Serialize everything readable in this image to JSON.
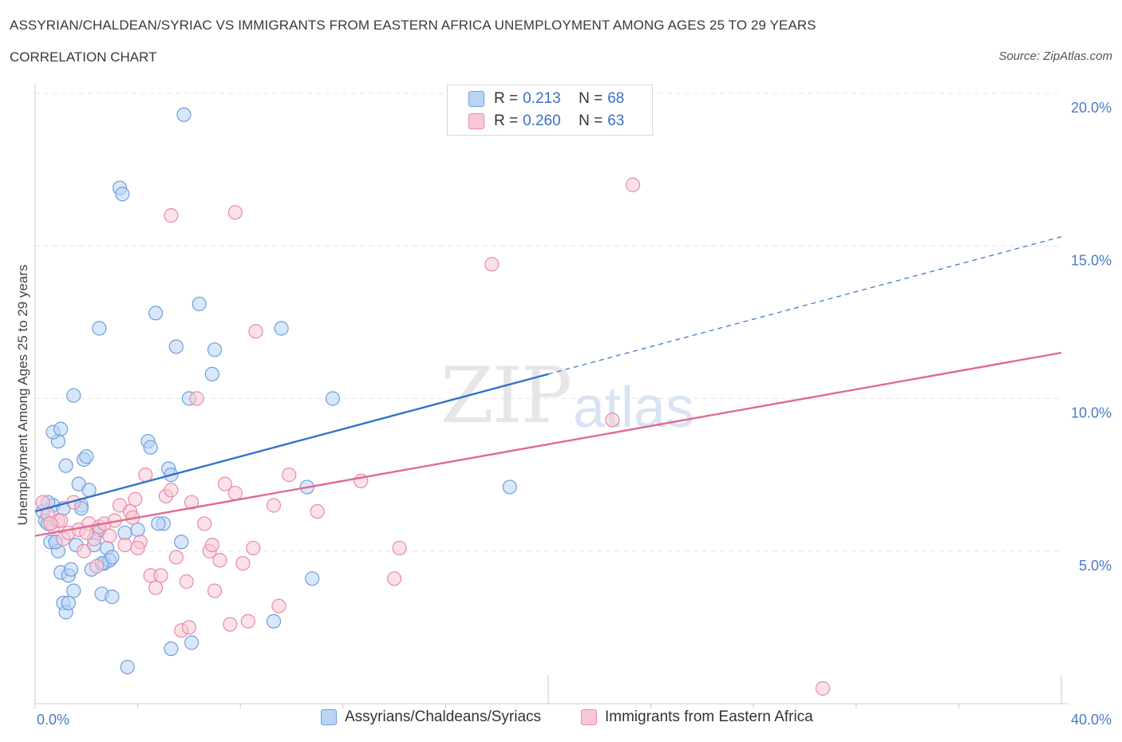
{
  "header": {
    "title": "ASSYRIAN/CHALDEAN/SYRIAC VS IMMIGRANTS FROM EASTERN AFRICA UNEMPLOYMENT AMONG AGES 25 TO 29 YEARS",
    "subtitle": "CORRELATION CHART",
    "source": "Source: ZipAtlas.com"
  },
  "watermark": {
    "zip": "ZIP",
    "atlas": "atlas"
  },
  "stats": {
    "r_label": "R =",
    "n_label": "N =",
    "rows": [
      {
        "r": "0.213",
        "n": "68"
      },
      {
        "r": "0.260",
        "n": "63"
      }
    ]
  },
  "colors": {
    "blue_fill": "#b9d4f5",
    "blue_stroke": "#6e9fdc",
    "blue_line": "#2f72cc",
    "pink_fill": "#f8c8d6",
    "pink_stroke": "#e98aa8",
    "pink_line": "#e06a95",
    "tick": "#4a7cc7",
    "grid": "#e3e3e3"
  },
  "chart_data": {
    "type": "scatter",
    "title": "ASSYRIAN/CHALDEAN/SYRIAC VS IMMIGRANTS FROM EASTERN AFRICA UNEMPLOYMENT AMONG AGES 25 TO 29 YEARS",
    "subtitle": "CORRELATION CHART",
    "xlabel": "",
    "ylabel": "Unemployment Among Ages 25 to 29 years",
    "xlim": [
      0,
      40
    ],
    "ylim": [
      0,
      20
    ],
    "x_tick_labels": [
      "0.0%",
      "40.0%"
    ],
    "y_ticks": [
      5,
      10,
      15,
      20
    ],
    "y_tick_labels": [
      "5.0%",
      "10.0%",
      "15.0%",
      "20.0%"
    ],
    "grid": true,
    "legend_position": "bottom",
    "series": [
      {
        "name": "Assyrians/Chaldeans/Syriacs",
        "color": "#6e9fdc",
        "r": 0.213,
        "n": 68,
        "trend": {
          "x0": 0,
          "y0": 6.3,
          "x1": 20,
          "y1": 10.8,
          "dashed_to_x": 40,
          "dashed_to_y": 15.3
        },
        "points": [
          [
            0.3,
            6.3
          ],
          [
            0.4,
            6.0
          ],
          [
            0.5,
            5.9
          ],
          [
            0.6,
            5.3
          ],
          [
            0.7,
            6.5
          ],
          [
            0.8,
            5.3
          ],
          [
            0.9,
            5.0
          ],
          [
            1.0,
            4.3
          ],
          [
            1.1,
            3.3
          ],
          [
            1.2,
            3.0
          ],
          [
            1.3,
            4.2
          ],
          [
            1.4,
            4.4
          ],
          [
            1.5,
            3.7
          ],
          [
            1.6,
            5.2
          ],
          [
            1.7,
            7.2
          ],
          [
            1.8,
            6.5
          ],
          [
            1.9,
            8.0
          ],
          [
            2.0,
            8.1
          ],
          [
            2.1,
            7.0
          ],
          [
            2.2,
            4.4
          ],
          [
            2.3,
            5.2
          ],
          [
            2.4,
            5.6
          ],
          [
            2.5,
            5.7
          ],
          [
            2.6,
            3.6
          ],
          [
            2.7,
            4.6
          ],
          [
            2.8,
            5.1
          ],
          [
            2.9,
            4.7
          ],
          [
            3.0,
            3.5
          ],
          [
            3.3,
            16.9
          ],
          [
            3.4,
            16.7
          ],
          [
            3.5,
            5.6
          ],
          [
            3.6,
            1.2
          ],
          [
            4.0,
            5.7
          ],
          [
            4.4,
            8.6
          ],
          [
            4.5,
            8.4
          ],
          [
            4.7,
            12.8
          ],
          [
            5.0,
            5.9
          ],
          [
            5.2,
            7.7
          ],
          [
            5.3,
            7.5
          ],
          [
            5.5,
            11.7
          ],
          [
            5.7,
            5.3
          ],
          [
            5.8,
            19.3
          ],
          [
            6.0,
            10.0
          ],
          [
            6.1,
            2.0
          ],
          [
            6.4,
            13.1
          ],
          [
            6.9,
            10.8
          ],
          [
            7.0,
            11.6
          ],
          [
            9.3,
            2.7
          ],
          [
            9.6,
            12.3
          ],
          [
            10.6,
            7.1
          ],
          [
            10.8,
            4.1
          ],
          [
            11.6,
            10.0
          ],
          [
            18.5,
            7.1
          ],
          [
            1.2,
            7.8
          ],
          [
            0.9,
            8.6
          ],
          [
            0.7,
            8.9
          ],
          [
            1.0,
            9.0
          ],
          [
            1.5,
            10.1
          ],
          [
            2.5,
            12.3
          ],
          [
            1.8,
            6.4
          ],
          [
            5.3,
            1.8
          ],
          [
            4.8,
            5.9
          ],
          [
            2.6,
            4.6
          ],
          [
            3.0,
            4.8
          ],
          [
            1.3,
            3.3
          ],
          [
            0.8,
            5.3
          ],
          [
            1.1,
            6.4
          ],
          [
            0.5,
            6.6
          ]
        ]
      },
      {
        "name": "Immigrants from Eastern Africa",
        "color": "#e98aa8",
        "r": 0.26,
        "n": 63,
        "trend": {
          "x0": 0,
          "y0": 5.5,
          "x1": 40,
          "y1": 11.5
        },
        "points": [
          [
            0.3,
            6.6
          ],
          [
            0.5,
            6.2
          ],
          [
            0.7,
            5.8
          ],
          [
            0.9,
            6.0
          ],
          [
            1.1,
            5.4
          ],
          [
            1.3,
            5.6
          ],
          [
            1.5,
            6.6
          ],
          [
            1.7,
            5.7
          ],
          [
            1.9,
            5.0
          ],
          [
            2.1,
            5.9
          ],
          [
            2.3,
            5.4
          ],
          [
            2.5,
            5.8
          ],
          [
            2.7,
            5.9
          ],
          [
            2.9,
            5.5
          ],
          [
            3.1,
            6.0
          ],
          [
            3.3,
            6.5
          ],
          [
            3.5,
            5.2
          ],
          [
            3.7,
            6.3
          ],
          [
            3.9,
            6.7
          ],
          [
            4.1,
            5.3
          ],
          [
            4.3,
            7.5
          ],
          [
            4.5,
            4.2
          ],
          [
            4.7,
            3.8
          ],
          [
            4.9,
            4.2
          ],
          [
            5.1,
            6.8
          ],
          [
            5.3,
            7.0
          ],
          [
            5.5,
            4.8
          ],
          [
            5.7,
            2.4
          ],
          [
            5.9,
            4.0
          ],
          [
            6.1,
            6.6
          ],
          [
            6.3,
            10.0
          ],
          [
            6.6,
            5.9
          ],
          [
            6.8,
            5.0
          ],
          [
            7.0,
            3.7
          ],
          [
            7.2,
            4.7
          ],
          [
            7.4,
            7.2
          ],
          [
            7.6,
            2.6
          ],
          [
            7.8,
            6.9
          ],
          [
            8.1,
            4.6
          ],
          [
            8.3,
            2.7
          ],
          [
            8.5,
            5.1
          ],
          [
            8.6,
            12.2
          ],
          [
            9.3,
            6.5
          ],
          [
            9.5,
            3.2
          ],
          [
            9.9,
            7.5
          ],
          [
            11.0,
            6.3
          ],
          [
            12.7,
            7.3
          ],
          [
            14.0,
            4.1
          ],
          [
            14.2,
            5.1
          ],
          [
            17.8,
            14.4
          ],
          [
            22.5,
            9.3
          ],
          [
            23.3,
            17.0
          ],
          [
            30.7,
            0.5
          ],
          [
            5.3,
            16.0
          ],
          [
            7.8,
            16.1
          ],
          [
            6.0,
            2.5
          ],
          [
            1.0,
            6.0
          ],
          [
            2.0,
            5.6
          ],
          [
            4.0,
            5.1
          ],
          [
            6.9,
            5.2
          ],
          [
            3.8,
            6.1
          ],
          [
            2.4,
            4.5
          ],
          [
            0.6,
            5.9
          ]
        ]
      }
    ]
  }
}
